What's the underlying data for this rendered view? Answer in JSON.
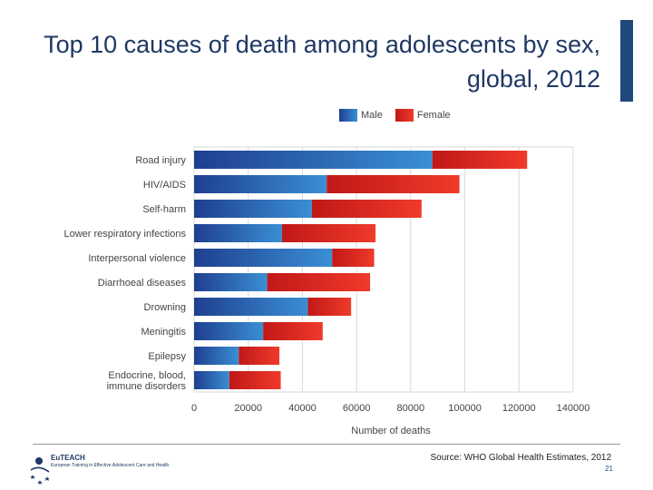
{
  "slide": {
    "title": "Top 10 causes of death among adolescents by sex, global, 2012",
    "source": "Source: WHO Global Health Estimates, 2012",
    "page_number": "21"
  },
  "logo": {
    "brand": "EuTEACH",
    "tagline": "European Training in Effective Adolescent Care and Health"
  },
  "colors": {
    "title": "#1f3864",
    "accent": "#1f497d",
    "male_dark": "#1f3f8f",
    "male_light": "#3a8fd4",
    "female_dark": "#c01818",
    "female_light": "#f03a2a",
    "grid": "#d9d9d9"
  },
  "chart_data": {
    "type": "bar",
    "orientation": "horizontal",
    "stacked": true,
    "title": "Top 10 causes of death among adolescents by sex, global, 2012",
    "xlabel": "Number of deaths",
    "ylabel": "",
    "xlim": [
      0,
      140000
    ],
    "xticks": [
      0,
      20000,
      40000,
      60000,
      80000,
      100000,
      120000,
      140000
    ],
    "grid": true,
    "legend_position": "top",
    "categories": [
      "Road injury",
      "HIV/AIDS",
      "Self-harm",
      "Lower respiratory infections",
      "Interpersonal violence",
      "Diarrhoeal diseases",
      "Drowning",
      "Meningitis",
      "Epilepsy",
      "Endocrine, blood, immune disorders"
    ],
    "series": [
      {
        "name": "Male",
        "values": [
          88000,
          49000,
          43500,
          32500,
          51000,
          27000,
          42000,
          25500,
          16500,
          13000
        ]
      },
      {
        "name": "Female",
        "values": [
          35000,
          49000,
          40500,
          34500,
          15500,
          38000,
          16000,
          22000,
          15000,
          19000
        ]
      }
    ]
  }
}
